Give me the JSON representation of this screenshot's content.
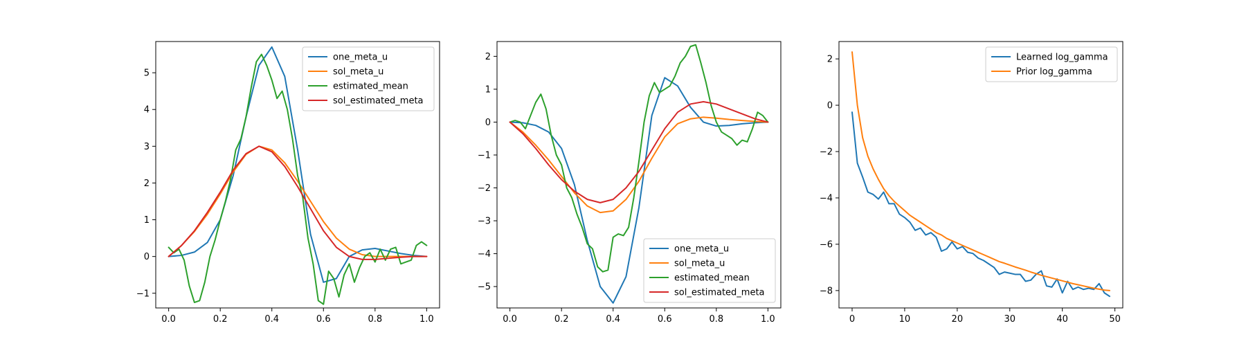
{
  "chart_data": [
    {
      "type": "line",
      "xlim": [
        -0.05,
        1.05
      ],
      "ylim": [
        -1.4,
        5.85
      ],
      "xticks": [
        0.0,
        0.2,
        0.4,
        0.6,
        0.8,
        1.0
      ],
      "xtick_labels": [
        "0.0",
        "0.2",
        "0.4",
        "0.6",
        "0.8",
        "1.0"
      ],
      "yticks": [
        -1,
        0,
        1,
        2,
        3,
        4,
        5
      ],
      "ytick_labels": [
        "−1",
        "0",
        "1",
        "2",
        "3",
        "4",
        "5"
      ],
      "grid": false,
      "legend_position": "upper-right",
      "series": [
        {
          "name": "one_meta_u",
          "color": "#1f77b4",
          "x": [
            0.0,
            0.05,
            0.1,
            0.15,
            0.2,
            0.25,
            0.3,
            0.35,
            0.4,
            0.45,
            0.5,
            0.55,
            0.6,
            0.65,
            0.7,
            0.75,
            0.8,
            0.85,
            0.9,
            0.95,
            1.0
          ],
          "y": [
            0.0,
            0.03,
            0.12,
            0.38,
            1.0,
            2.2,
            3.8,
            5.2,
            5.7,
            4.9,
            2.9,
            0.6,
            -0.7,
            -0.6,
            0.0,
            0.18,
            0.22,
            0.15,
            0.08,
            0.03,
            0.0
          ]
        },
        {
          "name": "sol_meta_u",
          "color": "#ff7f0e",
          "x": [
            0.0,
            0.05,
            0.1,
            0.15,
            0.2,
            0.25,
            0.3,
            0.35,
            0.4,
            0.45,
            0.5,
            0.55,
            0.6,
            0.65,
            0.7,
            0.75,
            0.8,
            0.85,
            0.9,
            0.95,
            1.0
          ],
          "y": [
            0.0,
            0.3,
            0.68,
            1.15,
            1.7,
            2.3,
            2.78,
            3.0,
            2.9,
            2.55,
            2.05,
            1.5,
            0.95,
            0.5,
            0.2,
            0.05,
            0.0,
            0.0,
            0.0,
            0.0,
            0.0
          ]
        },
        {
          "name": "estimated_mean",
          "color": "#2ca02c",
          "x": [
            0.0,
            0.02,
            0.04,
            0.06,
            0.08,
            0.1,
            0.12,
            0.14,
            0.16,
            0.18,
            0.2,
            0.22,
            0.24,
            0.26,
            0.28,
            0.3,
            0.32,
            0.34,
            0.36,
            0.38,
            0.4,
            0.42,
            0.44,
            0.46,
            0.48,
            0.5,
            0.52,
            0.54,
            0.56,
            0.58,
            0.6,
            0.62,
            0.64,
            0.66,
            0.68,
            0.7,
            0.72,
            0.74,
            0.76,
            0.78,
            0.8,
            0.82,
            0.84,
            0.86,
            0.88,
            0.9,
            0.92,
            0.94,
            0.96,
            0.98,
            1.0
          ],
          "y": [
            0.25,
            0.1,
            0.2,
            -0.1,
            -0.8,
            -1.25,
            -1.2,
            -0.7,
            0.0,
            0.45,
            1.0,
            1.5,
            2.1,
            2.9,
            3.2,
            3.8,
            4.6,
            5.3,
            5.5,
            5.2,
            4.8,
            4.3,
            4.5,
            4.0,
            3.2,
            2.2,
            1.6,
            0.5,
            -0.2,
            -1.2,
            -1.3,
            -0.4,
            -0.6,
            -1.1,
            -0.5,
            -0.2,
            -0.7,
            -0.3,
            0.0,
            0.1,
            -0.15,
            0.2,
            -0.1,
            0.2,
            0.25,
            -0.2,
            -0.15,
            -0.1,
            0.3,
            0.4,
            0.3
          ]
        },
        {
          "name": "sol_estimated_meta",
          "color": "#d62728",
          "x": [
            0.0,
            0.05,
            0.1,
            0.15,
            0.2,
            0.25,
            0.3,
            0.35,
            0.4,
            0.45,
            0.5,
            0.55,
            0.6,
            0.65,
            0.7,
            0.75,
            0.8,
            0.85,
            0.9,
            0.95,
            1.0
          ],
          "y": [
            0.0,
            0.3,
            0.7,
            1.2,
            1.75,
            2.35,
            2.8,
            3.0,
            2.85,
            2.45,
            1.9,
            1.3,
            0.7,
            0.25,
            0.0,
            -0.08,
            -0.08,
            -0.05,
            -0.02,
            0.0,
            0.0
          ]
        }
      ]
    },
    {
      "type": "line",
      "xlim": [
        -0.05,
        1.05
      ],
      "ylim": [
        -5.65,
        2.45
      ],
      "xticks": [
        0.0,
        0.2,
        0.4,
        0.6,
        0.8,
        1.0
      ],
      "xtick_labels": [
        "0.0",
        "0.2",
        "0.4",
        "0.6",
        "0.8",
        "1.0"
      ],
      "yticks": [
        -5,
        -4,
        -3,
        -2,
        -1,
        0,
        1,
        2
      ],
      "ytick_labels": [
        "−5",
        "−4",
        "−3",
        "−2",
        "−1",
        "0",
        "1",
        "2"
      ],
      "grid": false,
      "legend_position": "lower-right",
      "series": [
        {
          "name": "one_meta_u",
          "color": "#1f77b4",
          "x": [
            0.0,
            0.05,
            0.1,
            0.15,
            0.2,
            0.25,
            0.3,
            0.35,
            0.4,
            0.45,
            0.5,
            0.55,
            0.6,
            0.65,
            0.7,
            0.75,
            0.8,
            0.85,
            0.9,
            0.95,
            1.0
          ],
          "y": [
            0.0,
            -0.02,
            -0.1,
            -0.3,
            -0.8,
            -1.9,
            -3.6,
            -5.0,
            -5.5,
            -4.7,
            -2.6,
            0.2,
            1.35,
            1.1,
            0.45,
            0.0,
            -0.12,
            -0.1,
            -0.05,
            -0.02,
            0.0
          ]
        },
        {
          "name": "sol_meta_u",
          "color": "#ff7f0e",
          "x": [
            0.0,
            0.05,
            0.1,
            0.15,
            0.2,
            0.25,
            0.3,
            0.35,
            0.4,
            0.45,
            0.5,
            0.55,
            0.6,
            0.65,
            0.7,
            0.75,
            0.8,
            0.85,
            0.9,
            0.95,
            1.0
          ],
          "y": [
            0.0,
            -0.3,
            -0.7,
            -1.15,
            -1.65,
            -2.15,
            -2.55,
            -2.75,
            -2.7,
            -2.35,
            -1.8,
            -1.1,
            -0.45,
            -0.05,
            0.1,
            0.15,
            0.12,
            0.08,
            0.05,
            0.02,
            0.0
          ]
        },
        {
          "name": "estimated_mean",
          "color": "#2ca02c",
          "x": [
            0.0,
            0.02,
            0.04,
            0.06,
            0.08,
            0.1,
            0.12,
            0.14,
            0.16,
            0.18,
            0.2,
            0.22,
            0.24,
            0.26,
            0.28,
            0.3,
            0.32,
            0.34,
            0.36,
            0.38,
            0.4,
            0.42,
            0.44,
            0.46,
            0.48,
            0.5,
            0.52,
            0.54,
            0.56,
            0.58,
            0.6,
            0.62,
            0.64,
            0.66,
            0.68,
            0.7,
            0.72,
            0.74,
            0.76,
            0.78,
            0.8,
            0.82,
            0.84,
            0.86,
            0.88,
            0.9,
            0.92,
            0.94,
            0.96,
            0.98,
            1.0
          ],
          "y": [
            0.0,
            0.05,
            0.0,
            -0.2,
            0.2,
            0.6,
            0.85,
            0.4,
            -0.4,
            -1.0,
            -1.3,
            -2.0,
            -2.3,
            -2.8,
            -3.2,
            -3.7,
            -3.85,
            -4.4,
            -4.55,
            -4.5,
            -3.5,
            -3.4,
            -3.45,
            -3.2,
            -2.3,
            -1.2,
            0.0,
            0.8,
            1.2,
            0.9,
            1.0,
            1.1,
            1.4,
            1.8,
            2.0,
            2.3,
            2.35,
            1.8,
            1.2,
            0.5,
            0.0,
            -0.3,
            -0.4,
            -0.5,
            -0.7,
            -0.55,
            -0.6,
            -0.2,
            0.3,
            0.2,
            0.0
          ]
        },
        {
          "name": "sol_estimated_meta",
          "color": "#d62728",
          "x": [
            0.0,
            0.05,
            0.1,
            0.15,
            0.2,
            0.25,
            0.3,
            0.35,
            0.4,
            0.45,
            0.5,
            0.55,
            0.6,
            0.65,
            0.7,
            0.75,
            0.8,
            0.85,
            0.9,
            0.95,
            1.0
          ],
          "y": [
            0.0,
            -0.35,
            -0.8,
            -1.3,
            -1.75,
            -2.1,
            -2.35,
            -2.45,
            -2.35,
            -2.0,
            -1.5,
            -0.85,
            -0.2,
            0.3,
            0.55,
            0.62,
            0.55,
            0.4,
            0.25,
            0.1,
            0.0
          ]
        }
      ]
    },
    {
      "type": "line",
      "xlim": [
        -2.5,
        51.5
      ],
      "ylim": [
        -8.75,
        2.75
      ],
      "xticks": [
        0,
        10,
        20,
        30,
        40,
        50
      ],
      "xtick_labels": [
        "0",
        "10",
        "20",
        "30",
        "40",
        "50"
      ],
      "yticks": [
        -8,
        -6,
        -4,
        -2,
        0,
        2
      ],
      "ytick_labels": [
        "−8",
        "−6",
        "−4",
        "−2",
        "0",
        "2"
      ],
      "grid": false,
      "legend_position": "upper-right",
      "series": [
        {
          "name": "Learned log_gamma",
          "color": "#1f77b4",
          "x": [
            0,
            1,
            2,
            3,
            4,
            5,
            6,
            7,
            8,
            9,
            10,
            11,
            12,
            13,
            14,
            15,
            16,
            17,
            18,
            19,
            20,
            21,
            22,
            23,
            24,
            25,
            26,
            27,
            28,
            29,
            30,
            31,
            32,
            33,
            34,
            35,
            36,
            37,
            38,
            39,
            40,
            41,
            42,
            43,
            44,
            45,
            46,
            47,
            48,
            49
          ],
          "y": [
            -0.3,
            -2.5,
            -3.1,
            -3.75,
            -3.85,
            -4.05,
            -3.75,
            -4.25,
            -4.25,
            -4.7,
            -4.85,
            -5.05,
            -5.4,
            -5.3,
            -5.6,
            -5.5,
            -5.7,
            -6.3,
            -6.2,
            -5.9,
            -6.2,
            -6.1,
            -6.35,
            -6.4,
            -6.6,
            -6.7,
            -6.85,
            -7.0,
            -7.3,
            -7.2,
            -7.25,
            -7.3,
            -7.3,
            -7.6,
            -7.55,
            -7.3,
            -7.15,
            -7.8,
            -7.85,
            -7.5,
            -8.1,
            -7.6,
            -7.95,
            -7.85,
            -7.95,
            -7.9,
            -7.95,
            -7.7,
            -8.1,
            -8.25
          ]
        },
        {
          "name": "Prior log_gamma",
          "color": "#ff7f0e",
          "x": [
            0,
            1,
            2,
            3,
            4,
            5,
            6,
            7,
            8,
            9,
            10,
            11,
            12,
            13,
            14,
            15,
            16,
            17,
            18,
            19,
            20,
            21,
            22,
            23,
            24,
            25,
            26,
            27,
            28,
            29,
            30,
            31,
            32,
            33,
            34,
            35,
            36,
            37,
            38,
            39,
            40,
            41,
            42,
            43,
            44,
            45,
            46,
            47,
            48,
            49
          ],
          "y": [
            2.3,
            0.0,
            -1.4,
            -2.2,
            -2.75,
            -3.2,
            -3.6,
            -3.9,
            -4.15,
            -4.35,
            -4.55,
            -4.75,
            -4.9,
            -5.05,
            -5.2,
            -5.35,
            -5.5,
            -5.6,
            -5.75,
            -5.85,
            -5.95,
            -6.05,
            -6.15,
            -6.25,
            -6.35,
            -6.45,
            -6.55,
            -6.65,
            -6.75,
            -6.82,
            -6.9,
            -6.98,
            -7.05,
            -7.12,
            -7.2,
            -7.27,
            -7.34,
            -7.4,
            -7.46,
            -7.52,
            -7.58,
            -7.64,
            -7.7,
            -7.75,
            -7.8,
            -7.85,
            -7.9,
            -7.94,
            -7.98,
            -8.0
          ]
        }
      ]
    }
  ]
}
